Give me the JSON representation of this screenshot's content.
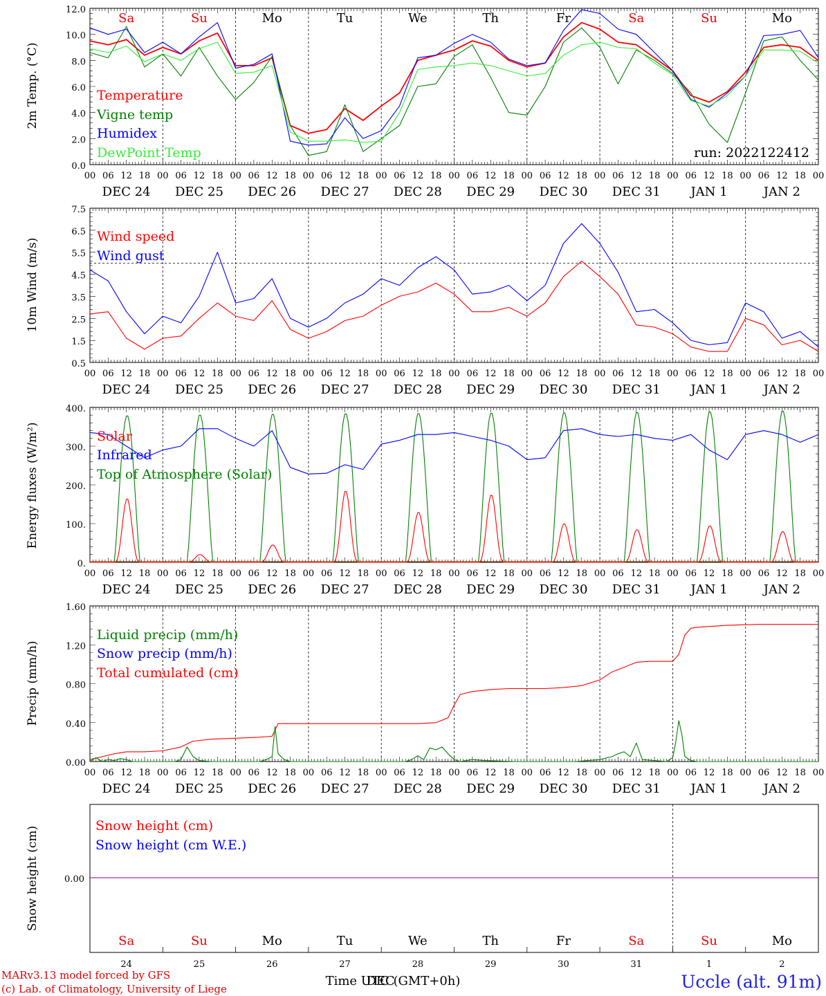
{
  "run_label": "run: 2022122412",
  "footer": {
    "credit_line1": "MARv3.13 model forced by GFS",
    "credit_line2": "(c) Lab. of Climatology, University of Liege",
    "time_axis": "Time UTC (GMT+0h)",
    "time_axis_overlay": "DEC",
    "station": "Uccle (alt. 91m)"
  },
  "days": [
    {
      "abbr": "Sa",
      "date": "DEC 24",
      "num": "24",
      "weekend": true
    },
    {
      "abbr": "Su",
      "date": "DEC 25",
      "num": "25",
      "weekend": true
    },
    {
      "abbr": "Mo",
      "date": "DEC 26",
      "num": "26",
      "weekend": false
    },
    {
      "abbr": "Tu",
      "date": "DEC 27",
      "num": "27",
      "weekend": false
    },
    {
      "abbr": "We",
      "date": "DEC 28",
      "num": "28",
      "weekend": false
    },
    {
      "abbr": "Th",
      "date": "DEC 29",
      "num": "29",
      "weekend": false
    },
    {
      "abbr": "Fr",
      "date": "DEC 30",
      "num": "30",
      "weekend": false
    },
    {
      "abbr": "Sa",
      "date": "DEC 31",
      "num": "31",
      "weekend": true
    },
    {
      "abbr": "Su",
      "date": "JAN  1",
      "num": "1",
      "weekend": true
    },
    {
      "abbr": "Mo",
      "date": "JAN  2",
      "num": "2",
      "weekend": false
    }
  ],
  "hour_ticks": [
    "00",
    "06",
    "12",
    "18"
  ],
  "colors": {
    "red": "#ff0000",
    "green": "#008000",
    "blue": "#0000ff",
    "lightgreen": "#33ee33",
    "purple": "#800080",
    "weekend": "#ee0000"
  },
  "chart_data": [
    {
      "type": "line",
      "ylabel": "2m Temp. (°C)",
      "ylim": [
        0,
        12
      ],
      "yticks": [
        "0.0",
        "2.0",
        "4.0",
        "6.0",
        "8.0",
        "10.0",
        "12.0"
      ],
      "x_unit": "hours since DEC 24 00 UTC",
      "xlim": [
        0,
        240
      ],
      "legend": [
        "Temperature",
        "Vigne temp",
        "Humidex",
        "DewPoint Temp"
      ],
      "series": [
        {
          "name": "Temperature",
          "color": "#ff0000",
          "x": [
            0,
            6,
            12,
            18,
            24,
            30,
            36,
            42,
            48,
            54,
            60,
            66,
            72,
            78,
            84,
            90,
            96,
            102,
            108,
            114,
            120,
            126,
            132,
            138,
            144,
            150,
            156,
            162,
            168,
            174,
            180,
            186,
            192,
            198,
            204,
            210,
            216,
            222,
            228,
            234,
            240
          ],
          "y": [
            9.5,
            9.2,
            9.6,
            8.4,
            9.0,
            8.5,
            9.5,
            10.1,
            7.6,
            7.6,
            8.2,
            3.0,
            2.4,
            2.7,
            4.3,
            3.4,
            4.5,
            5.5,
            8.0,
            8.4,
            8.8,
            9.5,
            9.1,
            8.0,
            7.5,
            7.8,
            9.8,
            10.9,
            10.4,
            9.4,
            9.2,
            8.2,
            7.2,
            5.3,
            4.8,
            5.6,
            7.1,
            9.0,
            9.2,
            9.0,
            8.0
          ]
        },
        {
          "name": "Vigne temp",
          "color": "#008000",
          "x": [
            0,
            6,
            12,
            18,
            24,
            30,
            36,
            42,
            48,
            54,
            60,
            66,
            72,
            78,
            84,
            90,
            96,
            102,
            108,
            114,
            120,
            126,
            132,
            138,
            144,
            150,
            156,
            162,
            168,
            174,
            180,
            186,
            192,
            198,
            204,
            210,
            216,
            222,
            228,
            234,
            240
          ],
          "y": [
            8.6,
            8.2,
            10.6,
            7.5,
            8.5,
            6.8,
            9.0,
            6.8,
            5.0,
            6.3,
            8.3,
            3.0,
            0.7,
            1.0,
            4.6,
            1.0,
            2.0,
            3.0,
            6.0,
            6.2,
            8.3,
            9.2,
            6.7,
            4.0,
            3.8,
            6.0,
            9.4,
            10.5,
            9.0,
            6.2,
            8.8,
            8.0,
            7.0,
            5.5,
            3.1,
            1.7,
            5.5,
            9.5,
            9.8,
            8.0,
            6.5
          ]
        },
        {
          "name": "Humidex",
          "color": "#0000ff",
          "x": [
            0,
            6,
            12,
            18,
            24,
            30,
            36,
            42,
            48,
            54,
            60,
            66,
            72,
            78,
            84,
            90,
            96,
            102,
            108,
            114,
            120,
            126,
            132,
            138,
            144,
            150,
            156,
            162,
            168,
            174,
            180,
            186,
            192,
            198,
            204,
            210,
            216,
            222,
            228,
            234,
            240
          ],
          "y": [
            10.5,
            10.0,
            10.4,
            8.6,
            9.4,
            8.5,
            9.8,
            10.9,
            7.4,
            7.7,
            8.5,
            1.8,
            1.5,
            1.6,
            3.6,
            2.0,
            2.6,
            4.5,
            8.2,
            8.4,
            9.3,
            10.0,
            9.4,
            8.1,
            7.6,
            7.8,
            10.3,
            11.9,
            11.6,
            10.4,
            10.0,
            8.6,
            7.2,
            5.0,
            4.4,
            5.5,
            6.8,
            9.9,
            10.0,
            10.3,
            8.2
          ]
        },
        {
          "name": "DewPoint Temp",
          "color": "#33ee33",
          "x": [
            0,
            6,
            12,
            18,
            24,
            30,
            36,
            42,
            48,
            54,
            60,
            66,
            72,
            78,
            84,
            90,
            96,
            102,
            108,
            114,
            120,
            126,
            132,
            138,
            144,
            150,
            156,
            162,
            168,
            174,
            180,
            186,
            192,
            198,
            204,
            210,
            216,
            222,
            228,
            234,
            240
          ],
          "y": [
            8.9,
            8.6,
            9.1,
            7.9,
            8.5,
            8.0,
            8.9,
            9.4,
            7.0,
            7.1,
            7.6,
            2.5,
            1.8,
            1.8,
            1.9,
            1.7,
            1.8,
            4.0,
            7.3,
            7.5,
            7.6,
            7.8,
            7.6,
            7.2,
            6.8,
            7.0,
            8.4,
            9.2,
            9.4,
            9.0,
            8.9,
            7.8,
            6.9,
            4.9,
            4.5,
            5.3,
            6.8,
            8.8,
            8.8,
            8.7,
            7.8
          ]
        }
      ]
    },
    {
      "type": "line",
      "ylabel": "10m Wind (m/s)",
      "ylim": [
        0.5,
        7.5
      ],
      "yticks": [
        "0.5",
        "1.5",
        "2.5",
        "3.5",
        "4.5",
        "5.5",
        "6.5",
        "7.5"
      ],
      "reference_line": 5.0,
      "xlim": [
        0,
        240
      ],
      "legend": [
        "Wind speed",
        "Wind gust"
      ],
      "series": [
        {
          "name": "Wind speed",
          "color": "#ff0000",
          "x": [
            0,
            6,
            12,
            18,
            24,
            30,
            36,
            42,
            48,
            54,
            60,
            66,
            72,
            78,
            84,
            90,
            96,
            102,
            108,
            114,
            120,
            126,
            132,
            138,
            144,
            150,
            156,
            162,
            168,
            174,
            180,
            186,
            192,
            198,
            204,
            210,
            216,
            222,
            228,
            234,
            240
          ],
          "y": [
            2.7,
            2.8,
            1.6,
            1.1,
            1.6,
            1.7,
            2.5,
            3.2,
            2.6,
            2.4,
            3.3,
            2.0,
            1.6,
            1.9,
            2.4,
            2.6,
            3.1,
            3.5,
            3.7,
            4.1,
            3.6,
            2.8,
            2.8,
            3.0,
            2.6,
            3.2,
            4.4,
            5.1,
            4.4,
            3.6,
            2.2,
            2.1,
            1.8,
            1.2,
            1.0,
            1.0,
            2.5,
            2.2,
            1.3,
            1.5,
            1.0
          ]
        },
        {
          "name": "Wind gust",
          "color": "#0000ff",
          "x": [
            0,
            6,
            12,
            18,
            24,
            30,
            36,
            42,
            48,
            54,
            60,
            66,
            72,
            78,
            84,
            90,
            96,
            102,
            108,
            114,
            120,
            126,
            132,
            138,
            144,
            150,
            156,
            162,
            168,
            174,
            180,
            186,
            192,
            198,
            204,
            210,
            216,
            222,
            228,
            234,
            240
          ],
          "y": [
            4.7,
            4.2,
            2.8,
            1.8,
            2.6,
            2.3,
            3.5,
            5.5,
            3.2,
            3.4,
            4.3,
            2.5,
            2.1,
            2.5,
            3.2,
            3.6,
            4.3,
            4.0,
            4.8,
            5.3,
            4.7,
            3.6,
            3.7,
            4.0,
            3.3,
            4.0,
            5.9,
            6.8,
            5.9,
            4.6,
            2.8,
            2.9,
            2.3,
            1.5,
            1.3,
            1.4,
            3.2,
            2.8,
            1.6,
            1.9,
            1.2
          ]
        }
      ]
    },
    {
      "type": "line",
      "ylabel": "Energy fluxes (W/m²)",
      "ylim": [
        0,
        400
      ],
      "yticks": [
        "0.",
        "100.",
        "200.",
        "300.",
        "400."
      ],
      "xlim": [
        0,
        240
      ],
      "legend": [
        "Solar",
        "Infrared",
        "Top of Atmosphere (Solar)"
      ],
      "daily_solar_peak": [
        165,
        20,
        45,
        185,
        130,
        175,
        100,
        85,
        95,
        80
      ],
      "daily_toa_peak": [
        380,
        382,
        384,
        385,
        386,
        387,
        388,
        389,
        390,
        392
      ],
      "series": [
        {
          "name": "Infrared",
          "color": "#0000ff",
          "x": [
            0,
            6,
            12,
            18,
            24,
            30,
            36,
            42,
            48,
            54,
            60,
            66,
            72,
            78,
            84,
            90,
            96,
            102,
            108,
            114,
            120,
            126,
            132,
            138,
            144,
            150,
            156,
            162,
            168,
            174,
            180,
            186,
            192,
            198,
            204,
            210,
            216,
            222,
            228,
            234,
            240
          ],
          "y": [
            335,
            330,
            300,
            270,
            290,
            300,
            345,
            345,
            320,
            300,
            340,
            245,
            228,
            230,
            252,
            240,
            305,
            315,
            330,
            330,
            335,
            325,
            315,
            300,
            265,
            270,
            340,
            345,
            330,
            325,
            330,
            320,
            315,
            330,
            290,
            265,
            330,
            340,
            330,
            310,
            330
          ]
        }
      ]
    },
    {
      "type": "line",
      "ylabel": "Precip (mm/h)",
      "ylim": [
        0,
        1.6
      ],
      "yticks": [
        "0.00",
        "0.40",
        "0.80",
        "1.20",
        "1.60"
      ],
      "xlim": [
        0,
        240
      ],
      "legend": [
        "Liquid precip (mm/h)",
        "Snow precip (mm/h)",
        "Total cumulated (cm)"
      ],
      "series": [
        {
          "name": "Total cumulated (cm)",
          "color": "#ff0000",
          "x": [
            0,
            4,
            8,
            12,
            18,
            24,
            30,
            34,
            40,
            48,
            56,
            60,
            62,
            72,
            84,
            96,
            108,
            114,
            118,
            120,
            122,
            126,
            132,
            138,
            144,
            150,
            156,
            162,
            168,
            172,
            176,
            180,
            184,
            192,
            194,
            196,
            198,
            200,
            210,
            220,
            240
          ],
          "y": [
            0.02,
            0.05,
            0.08,
            0.1,
            0.1,
            0.11,
            0.15,
            0.21,
            0.23,
            0.24,
            0.25,
            0.26,
            0.39,
            0.39,
            0.39,
            0.39,
            0.39,
            0.4,
            0.45,
            0.58,
            0.69,
            0.72,
            0.74,
            0.75,
            0.75,
            0.75,
            0.76,
            0.78,
            0.84,
            0.92,
            0.97,
            1.02,
            1.03,
            1.03,
            1.1,
            1.3,
            1.37,
            1.38,
            1.4,
            1.41,
            1.41
          ]
        },
        {
          "name": "Liquid precip (mm/h)",
          "color": "#008000",
          "x": [
            0,
            2,
            4,
            6,
            8,
            10,
            12,
            14,
            20,
            28,
            30,
            32,
            34,
            36,
            40,
            48,
            56,
            58,
            60,
            61,
            62,
            64,
            66,
            72,
            100,
            104,
            106,
            108,
            110,
            112,
            114,
            116,
            118,
            120,
            122,
            124,
            126,
            130,
            140,
            160,
            168,
            172,
            174,
            176,
            178,
            180,
            182,
            190,
            192,
            193,
            194,
            195,
            196,
            198,
            200,
            210,
            220,
            240
          ],
          "y": [
            0,
            0.04,
            0,
            0.02,
            0.01,
            0.03,
            0.02,
            0,
            0,
            0,
            0.02,
            0.15,
            0.05,
            0.01,
            0,
            0,
            0,
            0.02,
            0.05,
            0.36,
            0.08,
            0.02,
            0,
            0,
            0,
            0,
            0.02,
            0.06,
            0.02,
            0.14,
            0.12,
            0.15,
            0.08,
            0.02,
            0,
            0.01,
            0.02,
            0.01,
            0,
            0,
            0.02,
            0.05,
            0.08,
            0.1,
            0.05,
            0.19,
            0.02,
            0,
            0.04,
            0.2,
            0.42,
            0.28,
            0.05,
            0.01,
            0,
            0,
            0,
            0
          ]
        }
      ]
    },
    {
      "type": "line",
      "ylabel": "Snow height (cm)",
      "ytick": "0.00",
      "xlim": [
        0,
        240
      ],
      "legend": [
        "Snow height (cm)",
        "Snow height (cm W.E.)"
      ],
      "series": [
        {
          "name": "Snow height (cm)",
          "color": "#800080",
          "x": [
            0,
            240
          ],
          "y": [
            0,
            0
          ]
        }
      ]
    }
  ]
}
